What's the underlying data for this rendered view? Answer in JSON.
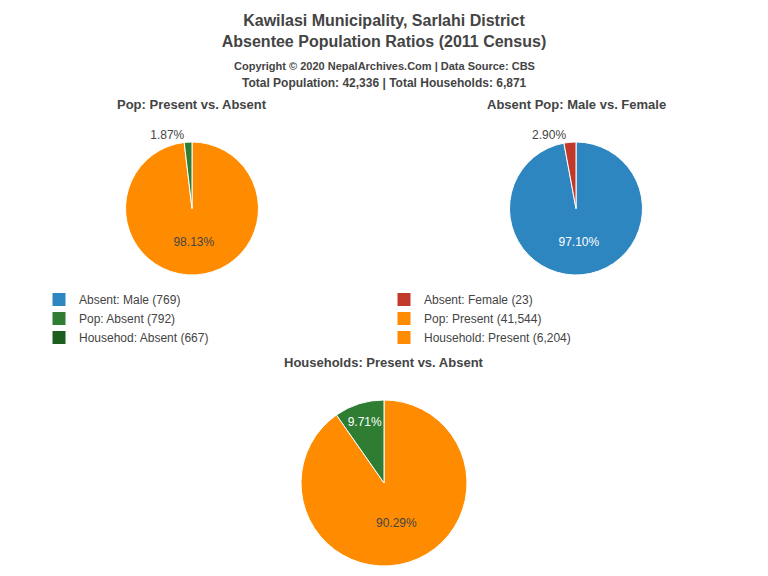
{
  "title": [
    "Kawilasi Municipality, Sarlahi District",
    "Absentee Population Ratios (2011 Census)"
  ],
  "subtitle": [
    "Copyright © 2020 NepalArchives.Com | Data Source: CBS",
    "Total Population: 42,336 | Total Households: 6,871"
  ],
  "series": [
    {
      "name": "Absent: Male (769)",
      "color": "#2e86c1"
    },
    {
      "name": "Absent: Female (23)",
      "color": "#c0392b"
    },
    {
      "name": "Pop: Absent (792)",
      "color": "#2e7d32"
    },
    {
      "name": "Pop: Present (41,544)",
      "color": "#ff8c00"
    },
    {
      "name": "Househod: Absent (667)",
      "color": "#1b5e20"
    },
    {
      "name": "Household: Present (6,204)",
      "color": "#ff8c00"
    }
  ],
  "chart_data": [
    {
      "type": "pie",
      "title": "Pop: Present vs. Absent",
      "values": [
        98.13,
        1.87
      ],
      "value_labels": [
        "98.13%",
        "1.87%"
      ],
      "colors": [
        "#ff8c00",
        "#2e7d32"
      ],
      "data_labels": true
    },
    {
      "type": "pie",
      "title": "Absent Pop: Male vs. Female",
      "values": [
        97.1,
        2.9
      ],
      "value_labels": [
        "97.10%",
        "2.90%"
      ],
      "colors": [
        "#2e86c1",
        "#c0392b"
      ],
      "data_labels": true
    },
    {
      "type": "pie",
      "title": "Households: Present vs. Absent",
      "values": [
        90.29,
        9.71
      ],
      "value_labels": [
        "90.29%",
        "9.71%"
      ],
      "colors": [
        "#ff8c00",
        "#2e7d32"
      ],
      "data_labels": true
    }
  ]
}
